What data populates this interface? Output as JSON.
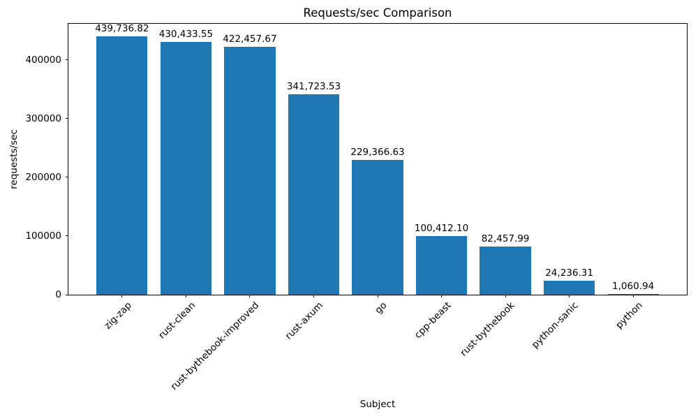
{
  "chart_data": {
    "type": "bar",
    "title": "Requests/sec Comparison",
    "xlabel": "Subject",
    "ylabel": "requests/sec",
    "categories": [
      "zig-zap",
      "rust-clean",
      "rust-bythebook-improved",
      "rust-axum",
      "go",
      "cpp-beast",
      "rust-bythebook",
      "python-sanic",
      "python"
    ],
    "values": [
      439736.82,
      430433.55,
      422457.67,
      341723.53,
      229366.63,
      100412.1,
      82457.99,
      24236.31,
      1060.94
    ],
    "value_labels": [
      "439,736.82",
      "430,433.55",
      "422,457.67",
      "341,723.53",
      "229,366.63",
      "100,412.10",
      "82,457.99",
      "24,236.31",
      "1,060.94"
    ],
    "yticks": [
      0,
      100000,
      200000,
      300000,
      400000
    ],
    "ytick_labels": [
      "0",
      "100000",
      "200000",
      "300000",
      "400000"
    ],
    "ylim": [
      0,
      461723.66
    ],
    "bar_color": "#1f77b4",
    "bar_width_fraction": 0.8,
    "grid": false,
    "legend": null,
    "x_tick_rotation_deg": 45
  }
}
